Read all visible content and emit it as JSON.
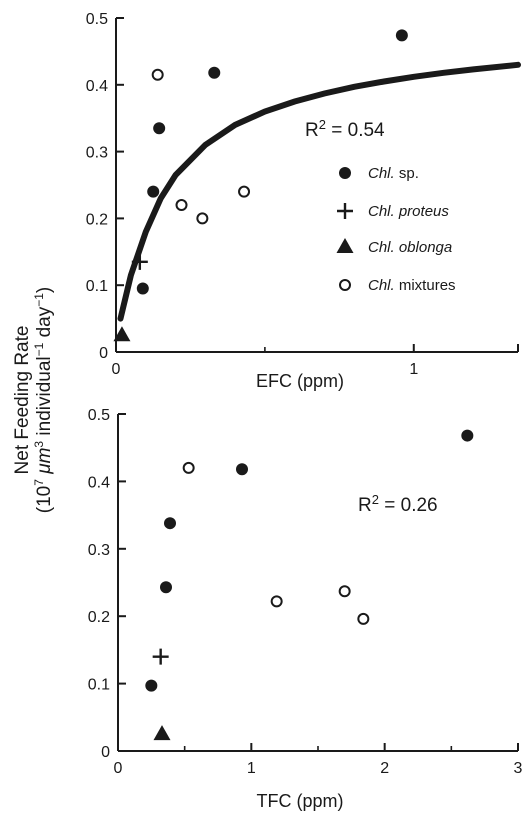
{
  "colors": {
    "ink": "#1a1a1a",
    "background": "#ffffff"
  },
  "ylabel": {
    "line1": "Net Feeding Rate",
    "line2_pre": "(10",
    "line2_sup1": "7",
    "line2_mu": " μm",
    "line2_sup2": "3",
    "line2_mid": " individual",
    "line2_sup3": "−1",
    "line2_day": " day",
    "line2_sup4": "−1",
    "line2_post": ")"
  },
  "legend": [
    {
      "marker": "filled-circle",
      "italic": "Chl.",
      "rest": " sp."
    },
    {
      "marker": "plus",
      "italic": "Chl. proteus",
      "rest": ""
    },
    {
      "marker": "filled-triangle",
      "italic": "Chl. oblonga",
      "rest": ""
    },
    {
      "marker": "open-circle",
      "italic": "Chl.",
      "rest": " mixtures"
    }
  ],
  "chart_data": [
    {
      "type": "scatter",
      "xlabel": "EFC (ppm)",
      "ylabel": "Net Feeding Rate (10^7 μm^3 individual^-1 day^-1)",
      "xlim": [
        0,
        1.35
      ],
      "ylim": [
        0,
        0.5
      ],
      "xticks": [
        0,
        1
      ],
      "yticks": [
        0,
        0.1,
        0.2,
        0.3,
        0.4,
        0.5
      ],
      "ytick_labels": [
        "0",
        "0.1",
        "0.2",
        "0.3",
        "0.4",
        "0.5"
      ],
      "xtick_labels": [
        "0",
        "1"
      ],
      "annotation": {
        "text": "R",
        "sup": "2",
        "rest": " = 0.54"
      },
      "legend_position": "right",
      "grid": false,
      "series": [
        {
          "name": "Chl. sp.",
          "marker": "filled-circle",
          "points": [
            [
              0.09,
              0.095
            ],
            [
              0.125,
              0.24
            ],
            [
              0.145,
              0.335
            ],
            [
              0.33,
              0.418
            ],
            [
              0.96,
              0.474
            ]
          ]
        },
        {
          "name": "Chl. proteus",
          "marker": "plus",
          "points": [
            [
              0.08,
              0.135
            ]
          ]
        },
        {
          "name": "Chl. oblonga",
          "marker": "filled-triangle",
          "points": [
            [
              0.02,
              0.025
            ]
          ]
        },
        {
          "name": "Chl. mixtures",
          "marker": "open-circle",
          "points": [
            [
              0.14,
              0.415
            ],
            [
              0.22,
              0.22
            ],
            [
              0.29,
              0.2
            ],
            [
              0.43,
              0.24
            ]
          ]
        },
        {
          "name": "fit",
          "marker": "line",
          "points": [
            [
              0.015,
              0.05
            ],
            [
              0.05,
              0.115
            ],
            [
              0.1,
              0.18
            ],
            [
              0.15,
              0.23
            ],
            [
              0.2,
              0.265
            ],
            [
              0.3,
              0.31
            ],
            [
              0.4,
              0.34
            ],
            [
              0.5,
              0.36
            ],
            [
              0.6,
              0.375
            ],
            [
              0.7,
              0.387
            ],
            [
              0.8,
              0.397
            ],
            [
              0.9,
              0.405
            ],
            [
              1.0,
              0.412
            ],
            [
              1.1,
              0.418
            ],
            [
              1.2,
              0.423
            ],
            [
              1.35,
              0.43
            ]
          ]
        }
      ]
    },
    {
      "type": "scatter",
      "xlabel": "TFC (ppm)",
      "ylabel": "Net Feeding Rate (10^7 μm^3 individual^-1 day^-1)",
      "xlim": [
        0,
        3
      ],
      "ylim": [
        0,
        0.5
      ],
      "xticks": [
        0,
        1,
        2,
        3
      ],
      "yticks": [
        0,
        0.1,
        0.2,
        0.3,
        0.4,
        0.5
      ],
      "ytick_labels": [
        "0",
        "0.1",
        "0.2",
        "0.3",
        "0.4",
        "0.5"
      ],
      "xtick_labels": [
        "0",
        "1",
        "2",
        "3"
      ],
      "annotation": {
        "text": "R",
        "sup": "2",
        "rest": " = 0.26"
      },
      "grid": false,
      "series": [
        {
          "name": "Chl. sp.",
          "marker": "filled-circle",
          "points": [
            [
              0.25,
              0.097
            ],
            [
              0.36,
              0.243
            ],
            [
              0.39,
              0.338
            ],
            [
              0.93,
              0.418
            ],
            [
              2.62,
              0.468
            ]
          ]
        },
        {
          "name": "Chl. proteus",
          "marker": "plus",
          "points": [
            [
              0.32,
              0.14
            ]
          ]
        },
        {
          "name": "Chl. oblonga",
          "marker": "filled-triangle",
          "points": [
            [
              0.33,
              0.025
            ]
          ]
        },
        {
          "name": "Chl. mixtures",
          "marker": "open-circle",
          "points": [
            [
              0.53,
              0.42
            ],
            [
              1.19,
              0.222
            ],
            [
              1.7,
              0.237
            ],
            [
              1.84,
              0.196
            ]
          ]
        }
      ]
    }
  ]
}
